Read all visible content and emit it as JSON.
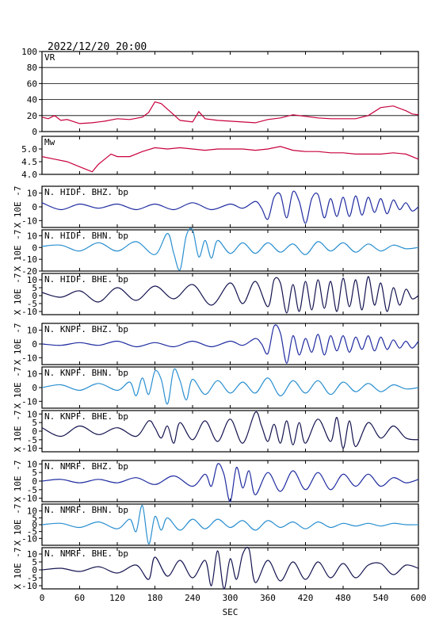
{
  "header": {
    "timestamp": "2022/12/20 20:00"
  },
  "colors": {
    "vr": "#c8003c",
    "mw": "#c8003c",
    "bhz": "#1f2ca0",
    "bhn": "#2a8fd0",
    "bhe": "#141450",
    "axis": "#000000"
  },
  "x_axis": {
    "label": "SEC",
    "ticks": [
      "0",
      "60",
      "120",
      "180",
      "240",
      "300",
      "360",
      "420",
      "480",
      "540",
      "600"
    ]
  },
  "chart_data": [
    {
      "type": "line",
      "label": "VR",
      "grid": true,
      "xlim": [
        0,
        600
      ],
      "ylim": [
        0,
        100
      ],
      "y_ticks": [
        "0",
        "20",
        "40",
        "60",
        "80",
        "100"
      ],
      "x": [
        0,
        10,
        20,
        30,
        40,
        60,
        80,
        100,
        120,
        140,
        160,
        170,
        180,
        190,
        200,
        210,
        220,
        240,
        250,
        260,
        280,
        300,
        320,
        340,
        360,
        380,
        400,
        420,
        440,
        460,
        480,
        500,
        520,
        540,
        560,
        580,
        590,
        600
      ],
      "y": [
        18,
        16,
        20,
        14,
        15,
        10,
        11,
        13,
        16,
        15,
        18,
        24,
        37,
        35,
        28,
        21,
        14,
        12,
        25,
        16,
        14,
        13,
        12,
        11,
        15,
        17,
        21,
        19,
        17,
        16,
        16,
        16,
        20,
        30,
        32,
        26,
        22,
        21
      ]
    },
    {
      "type": "line",
      "label": "Mw",
      "grid": false,
      "xlim": [
        0,
        600
      ],
      "ylim": [
        4.0,
        5.5
      ],
      "y_ticks": [
        "4.0",
        "4.5",
        "5.0"
      ],
      "x": [
        0,
        20,
        40,
        60,
        70,
        80,
        90,
        100,
        110,
        120,
        140,
        160,
        180,
        200,
        220,
        240,
        260,
        280,
        300,
        320,
        340,
        360,
        380,
        400,
        420,
        440,
        460,
        480,
        500,
        520,
        540,
        560,
        580,
        600
      ],
      "y": [
        4.7,
        4.6,
        4.5,
        4.3,
        4.2,
        4.1,
        4.4,
        4.6,
        4.8,
        4.7,
        4.7,
        4.9,
        5.05,
        5.0,
        5.05,
        5.0,
        4.95,
        5.0,
        5.0,
        5.0,
        4.95,
        5.0,
        5.1,
        4.95,
        4.9,
        4.9,
        4.85,
        4.85,
        4.8,
        4.8,
        4.8,
        4.85,
        4.8,
        4.6
      ]
    },
    {
      "type": "line",
      "label": "N. HIDF. BHZ. bp",
      "component": "bhz",
      "ylim": [
        -15,
        15
      ],
      "y_ticks": [
        "10",
        "0",
        "-10"
      ],
      "unit": "X 10E -7",
      "x": [
        0,
        30,
        60,
        90,
        120,
        150,
        180,
        210,
        240,
        270,
        300,
        320,
        340,
        350,
        360,
        370,
        380,
        390,
        400,
        410,
        420,
        430,
        440,
        450,
        460,
        470,
        480,
        490,
        500,
        510,
        520,
        530,
        540,
        550,
        560,
        570,
        580,
        590,
        600
      ],
      "y": [
        3,
        -2,
        2,
        -1,
        2,
        -2,
        2,
        -2,
        3,
        -2,
        2,
        -1,
        4,
        -1,
        -9,
        7,
        9,
        -8,
        11,
        4,
        -12,
        6,
        9,
        -8,
        6,
        -7,
        7,
        -7,
        8,
        -6,
        7,
        -4,
        6,
        -5,
        5,
        -2,
        3,
        -3,
        0
      ]
    },
    {
      "type": "line",
      "label": "N. HIDF. BHN. bp",
      "component": "bhn",
      "ylim": [
        -20,
        15
      ],
      "y_ticks": [
        "10",
        "0",
        "-10",
        "-20"
      ],
      "unit": "X 10E -7",
      "x": [
        0,
        30,
        60,
        90,
        120,
        150,
        180,
        200,
        210,
        220,
        230,
        240,
        250,
        260,
        270,
        280,
        300,
        320,
        340,
        360,
        380,
        400,
        420,
        440,
        460,
        480,
        500,
        520,
        540,
        560,
        580,
        600
      ],
      "y": [
        1,
        2,
        -3,
        4,
        -3,
        5,
        -6,
        12,
        -5,
        -19,
        10,
        15,
        -8,
        6,
        -9,
        6,
        -5,
        4,
        -5,
        4,
        -4,
        3,
        -6,
        5,
        -3,
        4,
        -4,
        3,
        -3,
        2,
        -1,
        0
      ]
    },
    {
      "type": "line",
      "label": "N. HIDF. BHE. bp",
      "component": "bhe",
      "ylim": [
        -12,
        14
      ],
      "y_ticks": [
        "10",
        "5",
        "0",
        "-5",
        "-10"
      ],
      "unit": "X 10E -7",
      "x": [
        0,
        30,
        60,
        90,
        120,
        150,
        180,
        210,
        240,
        270,
        300,
        320,
        340,
        360,
        370,
        380,
        390,
        400,
        410,
        420,
        430,
        440,
        450,
        460,
        470,
        480,
        490,
        500,
        510,
        520,
        530,
        540,
        550,
        560,
        570,
        580,
        590,
        600
      ],
      "y": [
        2,
        -1,
        3,
        -4,
        5,
        -3,
        6,
        -2,
        7,
        -6,
        8,
        -5,
        9,
        -7,
        10,
        8,
        -11,
        7,
        -10,
        9,
        -9,
        10,
        -8,
        9,
        -10,
        11,
        -7,
        10,
        -9,
        12,
        -6,
        8,
        -10,
        5,
        -6,
        4,
        -2,
        0
      ]
    },
    {
      "type": "line",
      "label": "N. KNPF. BHZ. bp",
      "component": "bhz",
      "ylim": [
        -15,
        15
      ],
      "y_ticks": [
        "10",
        "0",
        "-10"
      ],
      "unit": "X 10E -7",
      "x": [
        0,
        30,
        60,
        90,
        120,
        150,
        180,
        210,
        240,
        270,
        300,
        320,
        340,
        350,
        360,
        370,
        380,
        390,
        400,
        410,
        420,
        430,
        440,
        450,
        460,
        470,
        480,
        490,
        500,
        510,
        520,
        530,
        540,
        550,
        560,
        570,
        580,
        590,
        600
      ],
      "y": [
        0,
        -1,
        1,
        -1,
        2,
        -2,
        1,
        -2,
        2,
        -2,
        2,
        -1,
        4,
        0,
        -7,
        13,
        8,
        -14,
        6,
        -8,
        4,
        -6,
        7,
        -8,
        6,
        -5,
        6,
        -6,
        5,
        -4,
        6,
        -5,
        5,
        -4,
        3,
        -3,
        2,
        -3,
        2
      ]
    },
    {
      "type": "line",
      "label": "N. KNPF. BHN. bp",
      "component": "bhn",
      "ylim": [
        -15,
        15
      ],
      "y_ticks": [
        "10",
        "0",
        "-10"
      ],
      "unit": "X 10E -7",
      "x": [
        0,
        30,
        60,
        90,
        120,
        140,
        150,
        160,
        170,
        180,
        190,
        200,
        210,
        220,
        230,
        240,
        260,
        280,
        300,
        320,
        340,
        360,
        380,
        400,
        420,
        440,
        460,
        480,
        500,
        520,
        540,
        560,
        580,
        600
      ],
      "y": [
        0,
        2,
        -2,
        3,
        -2,
        4,
        -6,
        7,
        -5,
        12,
        6,
        -12,
        13,
        5,
        -9,
        6,
        -5,
        5,
        -4,
        4,
        -4,
        7,
        -6,
        5,
        -4,
        5,
        -5,
        4,
        -3,
        3,
        -3,
        2,
        -1,
        0
      ]
    },
    {
      "type": "line",
      "label": "N. KNPF. BHE. bp",
      "component": "bhe",
      "ylim": [
        -12,
        12
      ],
      "y_ticks": [
        "10",
        "5",
        "0",
        "-5",
        "-10"
      ],
      "unit": "X 10E -7",
      "x": [
        0,
        30,
        60,
        90,
        120,
        150,
        170,
        180,
        190,
        200,
        210,
        220,
        240,
        260,
        280,
        300,
        320,
        340,
        350,
        360,
        370,
        380,
        390,
        400,
        410,
        420,
        440,
        460,
        470,
        480,
        490,
        500,
        520,
        540,
        560,
        580,
        600
      ],
      "y": [
        2,
        -3,
        3,
        -2,
        2,
        -3,
        6,
        2,
        -4,
        3,
        -7,
        5,
        -5,
        6,
        -6,
        7,
        -7,
        11,
        3,
        -6,
        4,
        -7,
        6,
        -8,
        5,
        -7,
        7,
        -6,
        8,
        -10,
        6,
        -9,
        5,
        -4,
        3,
        -4,
        -5
      ]
    },
    {
      "type": "line",
      "label": "N. NMRF. BHZ. bp",
      "component": "bhz",
      "ylim": [
        -12,
        12
      ],
      "y_ticks": [
        "10",
        "5",
        "0",
        "-5",
        "-10"
      ],
      "unit": "X 10E -7",
      "x": [
        0,
        30,
        60,
        90,
        120,
        150,
        180,
        210,
        240,
        260,
        270,
        280,
        290,
        300,
        310,
        320,
        330,
        340,
        360,
        380,
        400,
        420,
        440,
        460,
        480,
        500,
        520,
        540,
        560,
        580,
        600
      ],
      "y": [
        0,
        1,
        -1,
        1,
        -1,
        2,
        -2,
        3,
        -3,
        4,
        -3,
        10,
        4,
        -12,
        8,
        -4,
        6,
        -8,
        5,
        -6,
        6,
        -5,
        5,
        -5,
        4,
        -3,
        4,
        -3,
        2,
        -1,
        1
      ]
    },
    {
      "type": "line",
      "label": "N. NMRF. BHN. bp",
      "component": "bhn",
      "ylim": [
        -15,
        15
      ],
      "y_ticks": [
        "10",
        "5",
        "0",
        "-5",
        "-10"
      ],
      "unit": "X 10E -7",
      "x": [
        0,
        30,
        60,
        90,
        120,
        140,
        150,
        160,
        170,
        180,
        190,
        200,
        220,
        240,
        260,
        280,
        300,
        320,
        340,
        360,
        380,
        400,
        420,
        440,
        460,
        480,
        500,
        520,
        540,
        560,
        580,
        600
      ],
      "y": [
        0,
        1,
        -2,
        2,
        -3,
        4,
        -5,
        14,
        -14,
        6,
        -4,
        5,
        -4,
        4,
        -3,
        4,
        -2,
        3,
        -4,
        3,
        -2,
        2,
        -3,
        2,
        -2,
        1,
        -1,
        1,
        -1,
        1,
        0,
        0
      ]
    },
    {
      "type": "line",
      "label": "N. NMRF. BHE. bp",
      "component": "bhe",
      "ylim": [
        -12,
        14
      ],
      "y_ticks": [
        "10",
        "5",
        "0",
        "-5",
        "-10"
      ],
      "unit": "X 10E -7",
      "x": [
        0,
        30,
        60,
        90,
        120,
        150,
        170,
        180,
        200,
        220,
        240,
        260,
        270,
        280,
        290,
        300,
        310,
        320,
        330,
        340,
        360,
        380,
        400,
        420,
        440,
        460,
        480,
        500,
        520,
        540,
        560,
        580,
        600
      ],
      "y": [
        0,
        1,
        -1,
        2,
        -2,
        3,
        -6,
        8,
        -4,
        6,
        -5,
        6,
        -10,
        12,
        -12,
        7,
        -6,
        10,
        13,
        -8,
        6,
        -7,
        5,
        -6,
        5,
        -5,
        4,
        -5,
        3,
        4,
        -3,
        3,
        1
      ]
    }
  ]
}
